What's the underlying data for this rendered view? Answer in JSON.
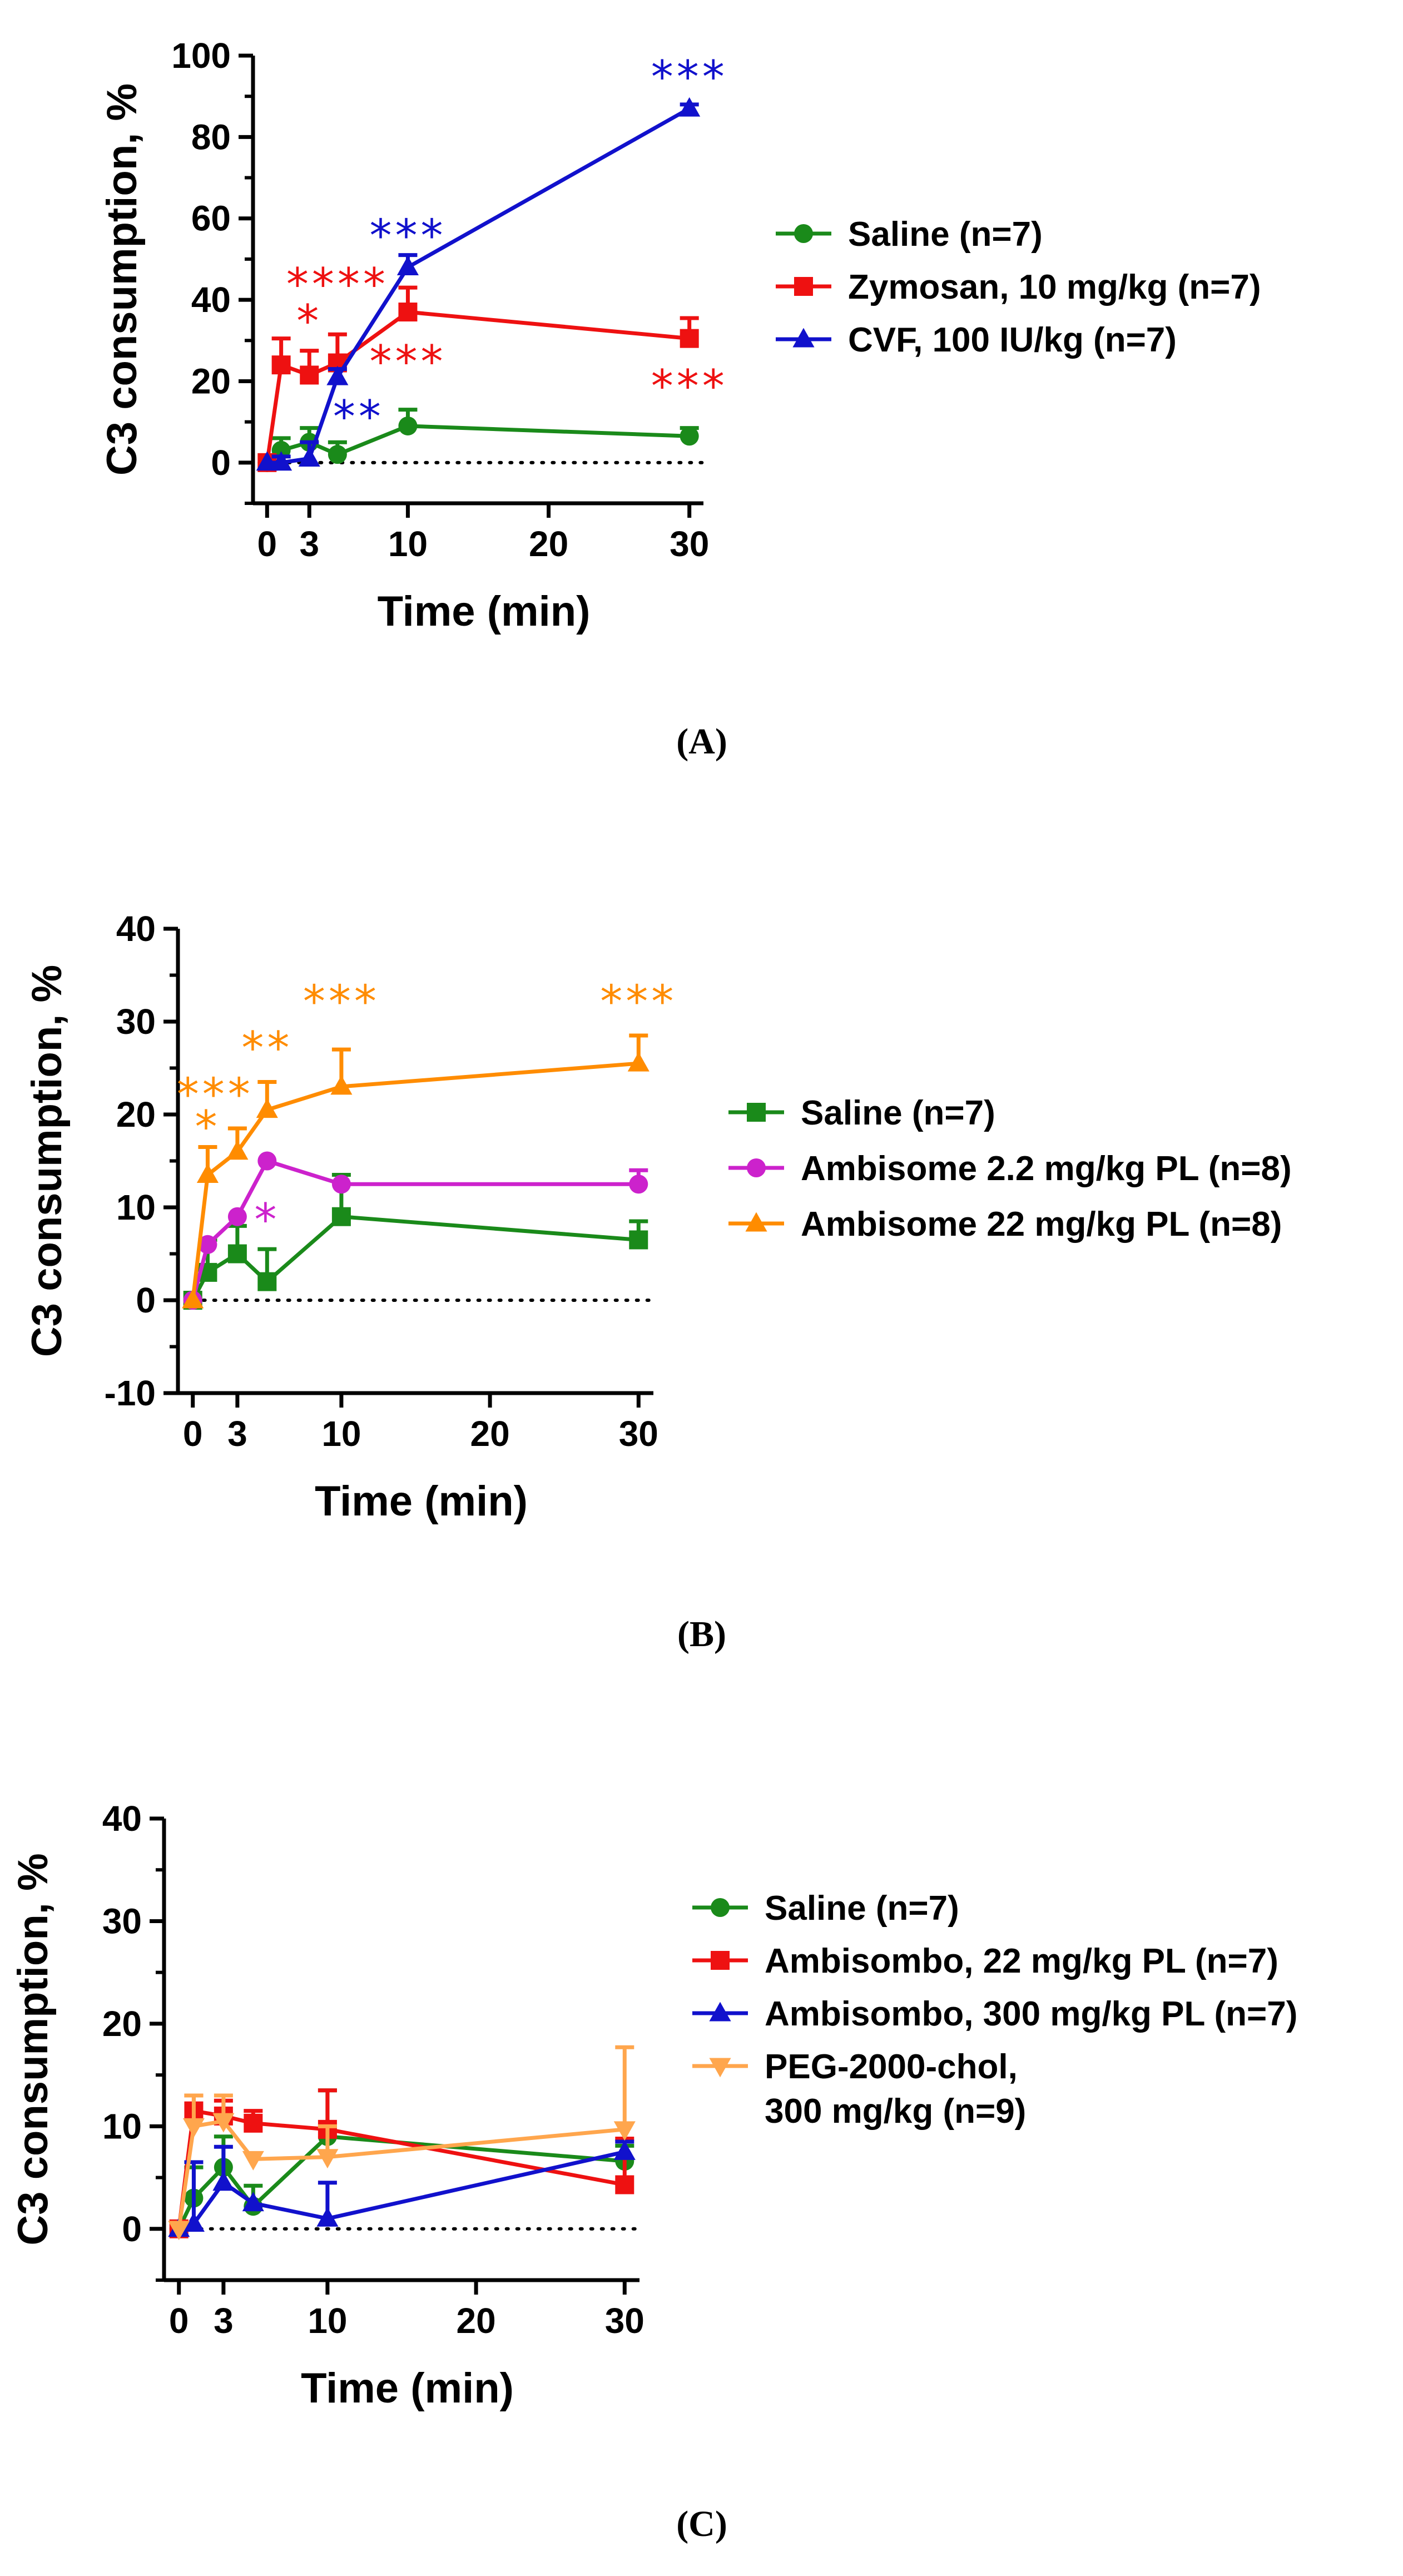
{
  "chart_data": [
    {
      "panel_label": "(A)",
      "type": "line",
      "xlabel": "Time (min)",
      "ylabel": "C3 consumption, %",
      "xlim": [
        -1,
        31
      ],
      "ylim": [
        -10,
        100
      ],
      "xticks": [
        0,
        3,
        10,
        20,
        30
      ],
      "yticks": [
        0,
        20,
        40,
        60,
        80,
        100
      ],
      "legend_position": "right",
      "zero_line": "dotted",
      "series": [
        {
          "name": "Saline (n=7)",
          "color": "#1a8a1a",
          "marker": "circle",
          "x": [
            0,
            1,
            3,
            5,
            10,
            30
          ],
          "y": [
            0,
            3,
            5,
            2,
            9,
            6.5
          ],
          "err": [
            0,
            3,
            3.5,
            3,
            4,
            2
          ]
        },
        {
          "name": "Zymosan, 10 mg/kg (n=7)",
          "color": "#ee1111",
          "marker": "square",
          "x": [
            0,
            1,
            3,
            5,
            10,
            30
          ],
          "y": [
            0,
            24,
            21.5,
            24.5,
            37,
            30.5
          ],
          "err": [
            0,
            6.5,
            6,
            7,
            6,
            5
          ]
        },
        {
          "name": "CVF, 100 IU/kg (n=7)",
          "color": "#1111cc",
          "marker": "triangle",
          "x": [
            0,
            1,
            3,
            5,
            10,
            30
          ],
          "y": [
            0,
            0,
            1,
            21,
            48,
            87
          ],
          "err": [
            0,
            1.5,
            4,
            2,
            3,
            1
          ]
        }
      ],
      "annotations": [
        {
          "text": "****",
          "x": 5,
          "y": 40,
          "color": "#ee1111"
        },
        {
          "text": "*",
          "x": 3,
          "y": 31,
          "color": "#ee1111"
        },
        {
          "text": "***",
          "x": 10,
          "y": 21,
          "color": "#ee1111"
        },
        {
          "text": "***",
          "x": 30,
          "y": 15,
          "color": "#ee1111"
        },
        {
          "text": "***",
          "x": 10,
          "y": 52,
          "color": "#1111cc"
        },
        {
          "text": "***",
          "x": 30,
          "y": 91,
          "color": "#1111cc"
        },
        {
          "text": "**",
          "x": 6.5,
          "y": 7.5,
          "color": "#1111cc"
        }
      ]
    },
    {
      "panel_label": "(B)",
      "type": "line",
      "xlabel": "Time (min)",
      "ylabel": "C3 consumption, %",
      "xlim": [
        -1,
        31
      ],
      "ylim": [
        -10,
        40
      ],
      "xticks": [
        0,
        3,
        10,
        20,
        30
      ],
      "yticks": [
        -10,
        0,
        10,
        20,
        30,
        40
      ],
      "legend_position": "right",
      "zero_line": "dotted",
      "series": [
        {
          "name": "Saline (n=7)",
          "color": "#1a8a1a",
          "marker": "square",
          "x": [
            0,
            1,
            3,
            5,
            10,
            30
          ],
          "y": [
            0,
            3,
            5,
            2,
            9,
            6.5
          ],
          "err": [
            0,
            3.5,
            3,
            3.5,
            4.5,
            2
          ]
        },
        {
          "name": "Ambisome 2.2 mg/kg PL (n=8)",
          "color": "#cc22cc",
          "marker": "circle",
          "x": [
            0,
            1,
            3,
            5,
            10,
            30
          ],
          "y": [
            0,
            6,
            9,
            15,
            12.5,
            12.5
          ],
          "err": [
            0,
            0,
            0,
            0,
            0,
            1.5
          ]
        },
        {
          "name": "Ambisome 22 mg/kg PL (n=8)",
          "color": "#ff8c00",
          "marker": "triangle",
          "x": [
            0,
            1,
            3,
            5,
            10,
            30
          ],
          "y": [
            0,
            13.5,
            16,
            20.5,
            23,
            25.5
          ],
          "err": [
            0,
            3,
            2.5,
            3,
            4,
            3
          ]
        }
      ],
      "annotations": [
        {
          "text": "***",
          "x": 1.5,
          "y": 20.5,
          "color": "#ff8c00"
        },
        {
          "text": "*",
          "x": 1,
          "y": 17,
          "color": "#ff8c00"
        },
        {
          "text": "**",
          "x": 5,
          "y": 25.5,
          "color": "#ff8c00"
        },
        {
          "text": "***",
          "x": 10,
          "y": 30.5,
          "color": "#ff8c00"
        },
        {
          "text": "***",
          "x": 30,
          "y": 30.5,
          "color": "#ff8c00"
        },
        {
          "text": "*",
          "x": 5,
          "y": 7,
          "color": "#cc22cc"
        }
      ]
    },
    {
      "panel_label": "(C)",
      "type": "line",
      "xlabel": "Time (min)",
      "ylabel": "C3 consumption, %",
      "xlim": [
        -1,
        31
      ],
      "ylim": [
        -5,
        40
      ],
      "xticks": [
        0,
        3,
        10,
        20,
        30
      ],
      "yticks": [
        0,
        10,
        20,
        30,
        40
      ],
      "legend_position": "right",
      "zero_line": "dotted",
      "series": [
        {
          "name": "Saline (n=7)",
          "color": "#1a8a1a",
          "marker": "circle",
          "x": [
            0,
            1,
            3,
            5,
            10,
            30
          ],
          "y": [
            0,
            3,
            6,
            2.2,
            9,
            6.6
          ],
          "err": [
            0,
            3,
            3,
            2,
            4.5,
            1.5
          ]
        },
        {
          "name": "Ambisombo, 22 mg/kg PL (n=7)",
          "color": "#ee1111",
          "marker": "square",
          "x": [
            0,
            1,
            3,
            5,
            10,
            30
          ],
          "y": [
            0,
            11.5,
            11,
            10.3,
            9.7,
            4.3
          ],
          "err": [
            0,
            1.5,
            1.5,
            1.2,
            3.8,
            4.5
          ]
        },
        {
          "name": "Ambisombo, 300 mg/kg PL (n=7)",
          "color": "#1111cc",
          "marker": "triangle",
          "x": [
            0,
            1,
            3,
            5,
            10,
            30
          ],
          "y": [
            0,
            0.5,
            4.5,
            2.5,
            1,
            7.5
          ],
          "err": [
            0,
            6,
            3.5,
            0,
            3.5,
            1
          ]
        },
        {
          "name": "PEG-2000-chol,\n300 mg/kg (n=9)",
          "color": "#ffa64d",
          "marker": "triangle-down",
          "x": [
            0,
            1,
            3,
            5,
            10,
            30
          ],
          "y": [
            0,
            10,
            10.5,
            6.8,
            7,
            9.7
          ],
          "err": [
            0,
            3,
            2.5,
            0,
            3,
            8
          ]
        }
      ],
      "annotations": []
    }
  ]
}
